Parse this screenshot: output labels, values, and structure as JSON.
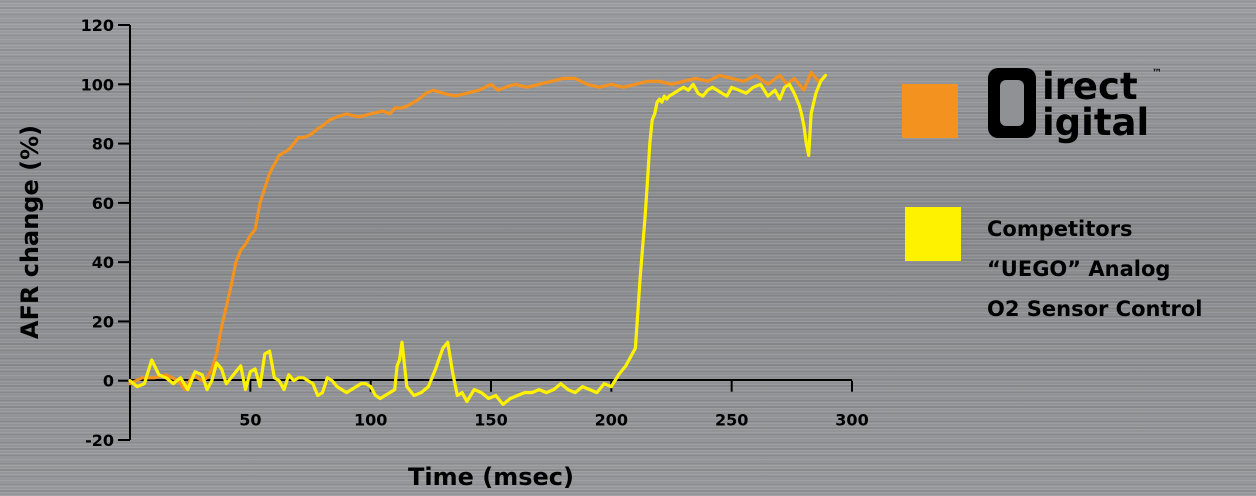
{
  "chart_data": {
    "type": "line",
    "xlabel": "Time (msec)",
    "ylabel": "AFR change (%)",
    "xlim": [
      0,
      300
    ],
    "ylim": [
      -20,
      120
    ],
    "x_ticks": [
      50,
      100,
      150,
      200,
      250,
      300
    ],
    "y_ticks": [
      -20,
      0,
      20,
      40,
      60,
      80,
      100,
      120
    ],
    "legend_position": "right",
    "series": [
      {
        "color": "#f4921f",
        "x": [
          0,
          5,
          10,
          15,
          20,
          23,
          26,
          28,
          30,
          32,
          34,
          36,
          38,
          40,
          42,
          44,
          46,
          48,
          50,
          52,
          54,
          56,
          58,
          60,
          62,
          64,
          66,
          68,
          70,
          72,
          75,
          78,
          80,
          83,
          86,
          90,
          95,
          100,
          105,
          108,
          110,
          113,
          116,
          120,
          123,
          126,
          130,
          135,
          140,
          145,
          150,
          153,
          156,
          160,
          165,
          170,
          175,
          180,
          185,
          190,
          195,
          200,
          205,
          210,
          215,
          220,
          225,
          230,
          235,
          240,
          245,
          250,
          255,
          260,
          265,
          270,
          273,
          276,
          280,
          283,
          286,
          288
        ],
        "y": [
          -1,
          1,
          1,
          2,
          0,
          -3,
          2,
          1,
          0,
          1,
          4,
          9,
          18,
          25,
          32,
          40,
          44,
          46,
          49,
          51,
          60,
          65,
          70,
          73,
          76,
          77,
          78,
          80,
          82,
          82,
          83,
          85,
          86,
          88,
          89,
          90,
          89,
          90,
          91,
          90,
          92,
          92,
          93,
          95,
          97,
          98,
          97,
          96,
          97,
          98,
          100,
          98,
          99,
          100,
          99,
          100,
          101,
          102,
          102,
          100,
          99,
          100,
          99,
          100,
          101,
          101,
          100,
          101,
          102,
          101,
          103,
          102,
          101,
          103,
          100,
          103,
          100,
          102,
          98,
          104,
          101,
          102
        ]
      },
      {
        "color": "#fff200",
        "x": [
          0,
          3,
          6,
          9,
          12,
          15,
          18,
          21,
          24,
          27,
          30,
          32,
          34,
          36,
          38,
          40,
          42,
          44,
          46,
          48,
          50,
          52,
          54,
          56,
          58,
          60,
          62,
          64,
          66,
          68,
          70,
          72,
          74,
          76,
          78,
          80,
          82,
          84,
          86,
          88,
          90,
          92,
          94,
          96,
          98,
          100,
          102,
          104,
          106,
          108,
          110,
          111,
          112,
          113,
          115,
          118,
          121,
          124,
          127,
          130,
          132,
          134,
          136,
          138,
          140,
          143,
          146,
          149,
          152,
          155,
          158,
          161,
          164,
          167,
          170,
          173,
          176,
          179,
          182,
          185,
          188,
          191,
          194,
          197,
          200,
          203,
          206,
          208,
          210,
          212,
          214,
          215,
          216,
          217,
          218,
          219,
          220,
          221,
          222,
          223,
          224,
          226,
          228,
          230,
          232,
          234,
          236,
          238,
          240,
          242,
          244,
          246,
          248,
          250,
          253,
          256,
          259,
          262,
          265,
          268,
          270,
          272,
          274,
          276,
          278,
          279,
          280,
          281,
          282,
          283,
          285,
          287,
          289
        ],
        "y": [
          0,
          -2,
          -1,
          7,
          2,
          1,
          -1,
          1,
          -3,
          3,
          2,
          -3,
          0,
          6,
          4,
          -1,
          1,
          3,
          5,
          -3,
          3,
          4,
          -2,
          9,
          10,
          1,
          0,
          -3,
          2,
          0,
          1,
          1,
          0,
          -1,
          -5,
          -4,
          1,
          0,
          -2,
          -3,
          -4,
          -3,
          -2,
          -1,
          -1,
          -2,
          -5,
          -6,
          -5,
          -4,
          -3,
          5,
          7,
          13,
          -2,
          -5,
          -4,
          -2,
          4,
          11,
          13,
          3,
          -5,
          -4,
          -7,
          -3,
          -4,
          -6,
          -5,
          -8,
          -6,
          -5,
          -4,
          -4,
          -3,
          -4,
          -3,
          -1,
          -3,
          -4,
          -2,
          -3,
          -4,
          -1,
          -2,
          2,
          5,
          8,
          11,
          35,
          55,
          67,
          80,
          88,
          90,
          94,
          95,
          94,
          96,
          95,
          96,
          97,
          98,
          99,
          98,
          100,
          97,
          96,
          98,
          99,
          98,
          97,
          96,
          99,
          98,
          97,
          99,
          100,
          96,
          98,
          95,
          99,
          100,
          97,
          93,
          90,
          86,
          80,
          76,
          90,
          97,
          101,
          103
        ]
      }
    ]
  },
  "legend": {
    "orange_color": "#f4921f",
    "yellow_color": "#fff200",
    "competitor_label_line1": "Competitors",
    "competitor_label_line2": "“UEGO” Analog",
    "competitor_label_line3": "O2 Sensor Control"
  },
  "logo": {
    "word_top": "irect",
    "word_bottom": "igital",
    "trademark": "™"
  }
}
